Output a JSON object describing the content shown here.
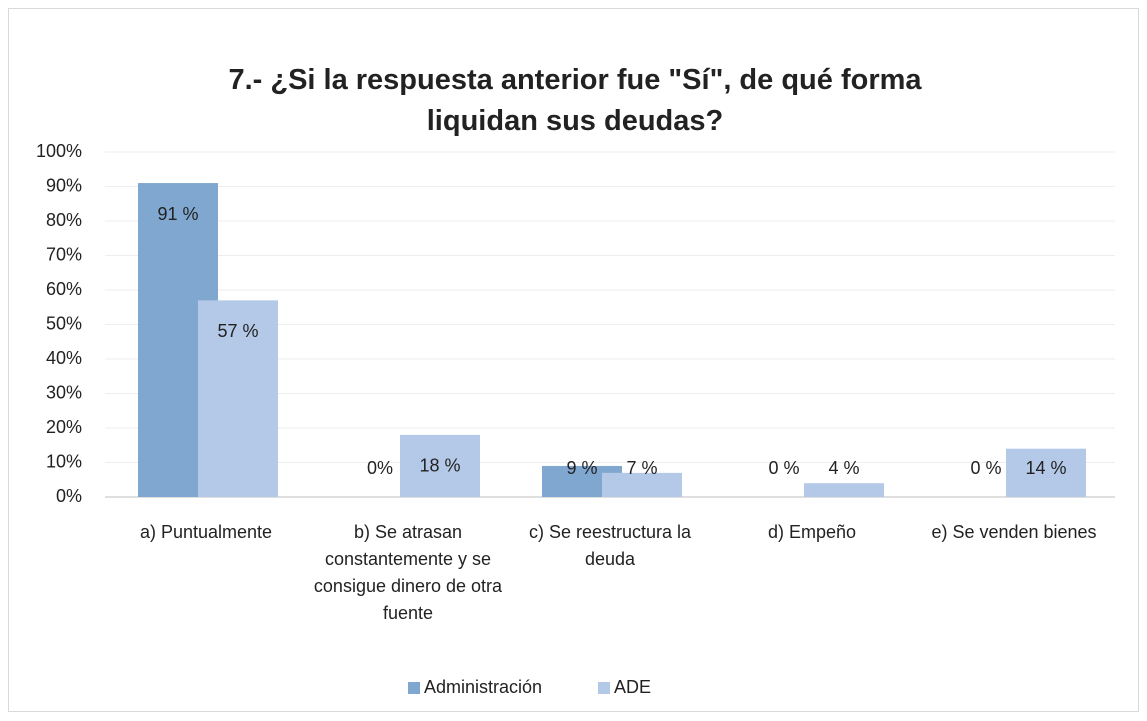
{
  "chart_data": {
    "type": "bar",
    "title": "7.- ¿Si la respuesta anterior fue \"Sí\", de qué forma liquidan sus deudas?",
    "categories": [
      "a) Puntualmente",
      "b) Se atrasan constantemente y se consigue dinero de otra fuente",
      "c) Se reestructura la deuda",
      "d) Empeño",
      "e) Se venden bienes"
    ],
    "series": [
      {
        "name": "Administración",
        "color": "#7fa7cf",
        "values": [
          91,
          0,
          9,
          0,
          0
        ],
        "value_labels": [
          "91 %",
          "0%",
          "9 %",
          "0 %",
          "0 %"
        ]
      },
      {
        "name": "ADE",
        "color": "#b4c9e8",
        "values": [
          57,
          18,
          7,
          4,
          14
        ],
        "value_labels": [
          "57 %",
          "18 %",
          "7 %",
          "4 %",
          "14 %"
        ]
      }
    ],
    "ylim": [
      0,
      100
    ],
    "yticks": [
      {
        "value": 0,
        "label": "0%"
      },
      {
        "value": 10,
        "label": "10%"
      },
      {
        "value": 20,
        "label": "20%"
      },
      {
        "value": 30,
        "label": "30%"
      },
      {
        "value": 40,
        "label": "40%"
      },
      {
        "value": 50,
        "label": "50%"
      },
      {
        "value": 60,
        "label": "60%"
      },
      {
        "value": 70,
        "label": "70%"
      },
      {
        "value": 80,
        "label": "80%"
      },
      {
        "value": 90,
        "label": "90%"
      },
      {
        "value": 100,
        "label": "100%"
      }
    ],
    "grid": true,
    "legend": "bottom"
  }
}
